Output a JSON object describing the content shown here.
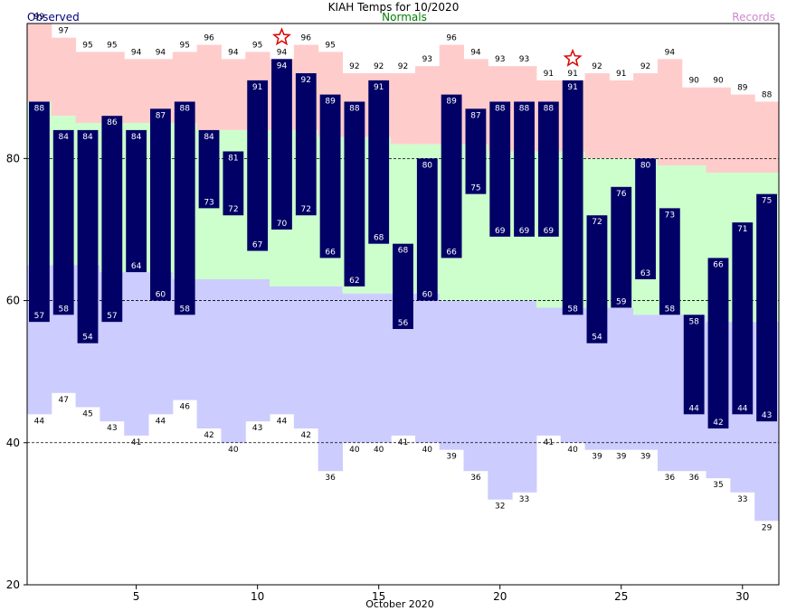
{
  "chart_data": {
    "type": "bar",
    "title": "KIAH Temps for 10/2020",
    "xlabel": "October 2020",
    "legend": {
      "observed": "Observed",
      "normals": "Normals",
      "records": "Records"
    },
    "colors": {
      "observed": "#000066",
      "observed_label": "#000080",
      "normals_band": "#ccffcc",
      "normals_label": "#008000",
      "record_high": "#ffcccc",
      "record_low": "#ccccff",
      "records_label": "#cc88cc",
      "star": "#dd0000"
    },
    "ylim": [
      20,
      99
    ],
    "yticks": [
      20,
      40,
      60,
      80
    ],
    "xticks": [
      5,
      10,
      15,
      20,
      25,
      30
    ],
    "days": [
      1,
      2,
      3,
      4,
      5,
      6,
      7,
      8,
      9,
      10,
      11,
      12,
      13,
      14,
      15,
      16,
      17,
      18,
      19,
      20,
      21,
      22,
      23,
      24,
      25,
      26,
      27,
      28,
      29,
      30,
      31
    ],
    "obs_high": [
      88,
      84,
      84,
      86,
      84,
      87,
      88,
      84,
      81,
      91,
      94,
      92,
      89,
      88,
      91,
      68,
      80,
      89,
      87,
      88,
      88,
      88,
      91,
      72,
      76,
      80,
      73,
      58,
      66,
      71,
      75
    ],
    "obs_low": [
      57,
      58,
      54,
      57,
      64,
      60,
      58,
      73,
      72,
      67,
      70,
      72,
      66,
      62,
      68,
      56,
      60,
      66,
      75,
      69,
      69,
      69,
      58,
      54,
      59,
      63,
      58,
      44,
      42,
      44,
      43
    ],
    "normal_high": [
      88,
      86,
      85,
      85,
      85,
      85,
      85,
      84,
      84,
      84,
      84,
      84,
      83,
      83,
      83,
      82,
      82,
      82,
      82,
      81,
      81,
      81,
      81,
      80,
      80,
      80,
      79,
      79,
      78,
      78,
      78
    ],
    "normal_low": [
      65,
      65,
      65,
      64,
      64,
      64,
      63,
      63,
      63,
      63,
      62,
      62,
      62,
      61,
      61,
      61,
      61,
      60,
      60,
      60,
      60,
      59,
      59,
      59,
      59,
      58,
      58,
      58,
      57,
      57,
      57
    ],
    "record_high": [
      99,
      97,
      95,
      95,
      94,
      94,
      95,
      96,
      94,
      95,
      94,
      96,
      95,
      92,
      92,
      92,
      93,
      96,
      94,
      93,
      93,
      91,
      91,
      92,
      91,
      92,
      94,
      90,
      90,
      89,
      88
    ],
    "record_low": [
      44,
      47,
      45,
      43,
      41,
      44,
      46,
      42,
      40,
      43,
      44,
      42,
      36,
      40,
      40,
      41,
      40,
      39,
      36,
      32,
      33,
      41,
      40,
      39,
      39,
      39,
      36,
      36,
      35,
      33,
      29
    ],
    "record_set_days": [
      11,
      23
    ]
  }
}
